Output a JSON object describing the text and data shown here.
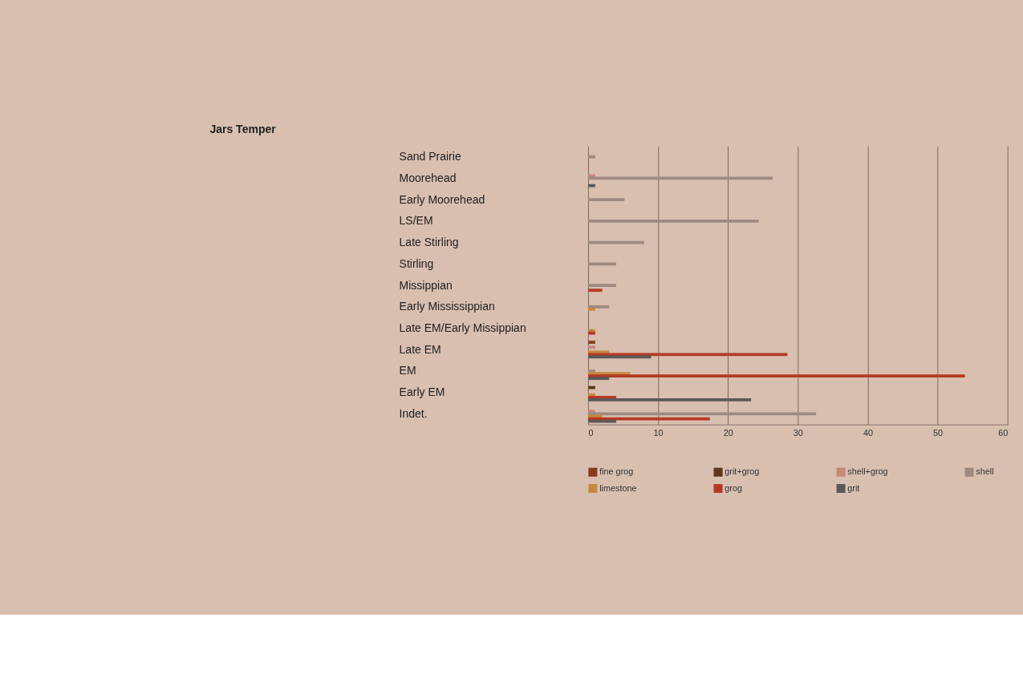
{
  "chart_data": {
    "type": "bar",
    "orientation": "horizontal",
    "title": "Jars Temper",
    "categories": [
      "Sand Prairie",
      "Moorehead",
      "Early Moorehead",
      "LS/EM",
      "Late Stirling",
      "Stirling",
      "Missippian",
      "Early Mississippian",
      "Late EM/Early Missippian",
      "Late EM",
      "EM",
      "Early EM",
      "Indet."
    ],
    "series": [
      {
        "name": "fine grog",
        "color": "#8b3a1e",
        "values": [
          null,
          null,
          null,
          null,
          null,
          null,
          null,
          null,
          null,
          1,
          null,
          null,
          null
        ]
      },
      {
        "name": "grit+grog",
        "color": "#5a3a1a",
        "values": [
          null,
          null,
          null,
          null,
          null,
          null,
          null,
          null,
          null,
          null,
          null,
          1,
          null
        ]
      },
      {
        "name": "shell+grog",
        "color": "#c4897a",
        "values": [
          null,
          1,
          null,
          null,
          null,
          null,
          null,
          null,
          null,
          1,
          null,
          null,
          1
        ]
      },
      {
        "name": "shell",
        "color": "#9e8a80",
        "values": [
          1,
          26.4,
          5.2,
          24.4,
          8,
          4,
          4,
          3,
          null,
          null,
          1,
          null,
          32.6
        ]
      },
      {
        "name": "limestone",
        "color": "#c8883e",
        "values": [
          null,
          null,
          null,
          null,
          null,
          null,
          null,
          1,
          1,
          3,
          6,
          1,
          2
        ]
      },
      {
        "name": "grog",
        "color": "#b53a25",
        "values": [
          null,
          null,
          null,
          null,
          null,
          null,
          2,
          null,
          1,
          28.5,
          53.9,
          4,
          17.4
        ]
      },
      {
        "name": "grit",
        "color": "#5c5858",
        "values": [
          null,
          1,
          null,
          null,
          null,
          null,
          null,
          null,
          null,
          9,
          3,
          23.3,
          4
        ]
      }
    ],
    "xlim": [
      0,
      60
    ],
    "xticks": [
      0,
      10,
      20,
      30,
      40,
      50,
      60
    ],
    "grid": "x",
    "legend": "bottom"
  }
}
